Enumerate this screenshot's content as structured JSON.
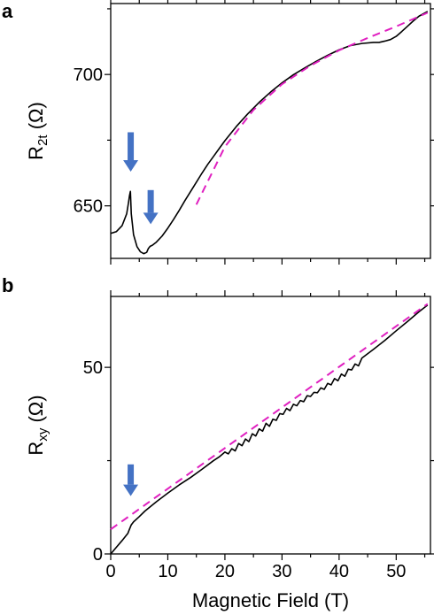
{
  "chart_data": [
    {
      "type": "line",
      "panel_label": "a",
      "ylabel_main": "R",
      "ylabel_sub": "2t",
      "ylabel_unit": " (Ω)",
      "xlim": [
        0,
        56
      ],
      "ylim": [
        630,
        727
      ],
      "yticks": [
        650,
        700
      ],
      "xticks": [
        0,
        10,
        20,
        30,
        40,
        50
      ],
      "grid": false,
      "series": [
        {
          "style": "solid",
          "color": "#000000",
          "x": [
            0,
            1,
            2,
            2.8,
            3.1,
            3.3,
            3.45,
            3.6,
            4,
            4.6,
            5.2,
            5.8,
            6.3,
            6.6,
            6.9,
            7.3,
            8,
            9,
            10,
            11,
            12,
            13,
            14,
            15,
            16,
            17,
            18,
            19,
            20,
            22,
            24,
            26,
            28,
            30,
            32,
            34,
            36,
            38,
            40,
            42,
            44,
            46,
            47,
            48,
            49,
            50,
            51,
            52,
            53,
            54,
            55.5
          ],
          "y": [
            639.5,
            640.2,
            642.5,
            647,
            651,
            654,
            655.5,
            647,
            639,
            634.5,
            632.5,
            631.8,
            632.3,
            633.8,
            634.6,
            635,
            636.2,
            638.5,
            641.5,
            644.8,
            648.3,
            652,
            655.5,
            659,
            662.5,
            665.8,
            668.8,
            671.8,
            674.8,
            680.2,
            685,
            689.4,
            693.3,
            696.8,
            699.9,
            702.5,
            705,
            707.3,
            709.4,
            711,
            711.8,
            712.2,
            712.2,
            712.7,
            713.3,
            714.5,
            716.4,
            718.4,
            720.4,
            722.2,
            724
          ]
        },
        {
          "style": "dashed",
          "color": "#e020c0",
          "x": [
            15,
            20,
            25,
            30,
            35,
            40,
            45,
            50,
            55.5
          ],
          "y": [
            650.5,
            672.5,
            686.5,
            696.3,
            703.4,
            709.2,
            713.9,
            718.3,
            723.5
          ]
        }
      ],
      "annotations": [
        {
          "type": "arrow",
          "x": 3.5,
          "y_tail": 678,
          "y_tip": 663,
          "color": "#4472c4"
        },
        {
          "type": "arrow",
          "x": 7.0,
          "y_tail": 656,
          "y_tip": 643,
          "color": "#4472c4"
        }
      ]
    },
    {
      "type": "line",
      "panel_label": "b",
      "ylabel_main": "R",
      "ylabel_sub": "xy",
      "ylabel_unit": " (Ω)",
      "xlabel": "Magnetic Field (T)",
      "xlim": [
        0,
        56
      ],
      "ylim": [
        0,
        69
      ],
      "yticks": [
        0,
        50
      ],
      "xticks": [
        0,
        10,
        20,
        30,
        40,
        50
      ],
      "grid": false,
      "series": [
        {
          "style": "solid",
          "color": "#000000",
          "x": [
            0,
            1,
            2,
            3,
            3.2,
            3.6,
            4,
            5,
            6,
            8,
            10,
            12,
            14,
            16,
            18,
            19,
            20,
            20.6,
            21.2,
            21.8,
            22.4,
            23,
            23.6,
            24.2,
            24.8,
            25.4,
            26,
            26.6,
            27.2,
            27.8,
            28.4,
            29,
            29.6,
            30.2,
            30.8,
            31.4,
            32,
            32.6,
            33.2,
            33.8,
            34.4,
            35,
            35.6,
            36.2,
            36.8,
            37.4,
            38,
            38.6,
            39.2,
            39.8,
            40.4,
            41,
            41.6,
            42.2,
            42.8,
            43.4,
            44,
            46,
            48,
            50,
            52,
            54,
            55.5
          ],
          "y": [
            0,
            1.8,
            3.6,
            5.5,
            6.3,
            7.8,
            8.6,
            10,
            11.5,
            14,
            16.3,
            18.5,
            20.5,
            22.7,
            25,
            26,
            27.3,
            26.8,
            28.2,
            27.6,
            29.6,
            29,
            30.8,
            30.1,
            32.2,
            31.6,
            33.5,
            32.9,
            35,
            34.2,
            36.1,
            35.8,
            37.6,
            37.4,
            39,
            38.4,
            40.1,
            39.7,
            41.1,
            40.8,
            42.4,
            42.2,
            43.3,
            43.2,
            44.5,
            44.1,
            45.7,
            45.3,
            47,
            46.4,
            48.2,
            47.6,
            49.5,
            49.3,
            50.9,
            50.4,
            52.5,
            54.8,
            57.2,
            59.8,
            62.3,
            64.9,
            66.7
          ]
        },
        {
          "style": "dashed",
          "color": "#e020c0",
          "x": [
            0,
            55.5
          ],
          "y": [
            6.6,
            67
          ]
        }
      ],
      "annotations": [
        {
          "type": "arrow",
          "x": 3.5,
          "y_tail": 24,
          "y_tip": 15.5,
          "color": "#4472c4"
        }
      ]
    }
  ]
}
